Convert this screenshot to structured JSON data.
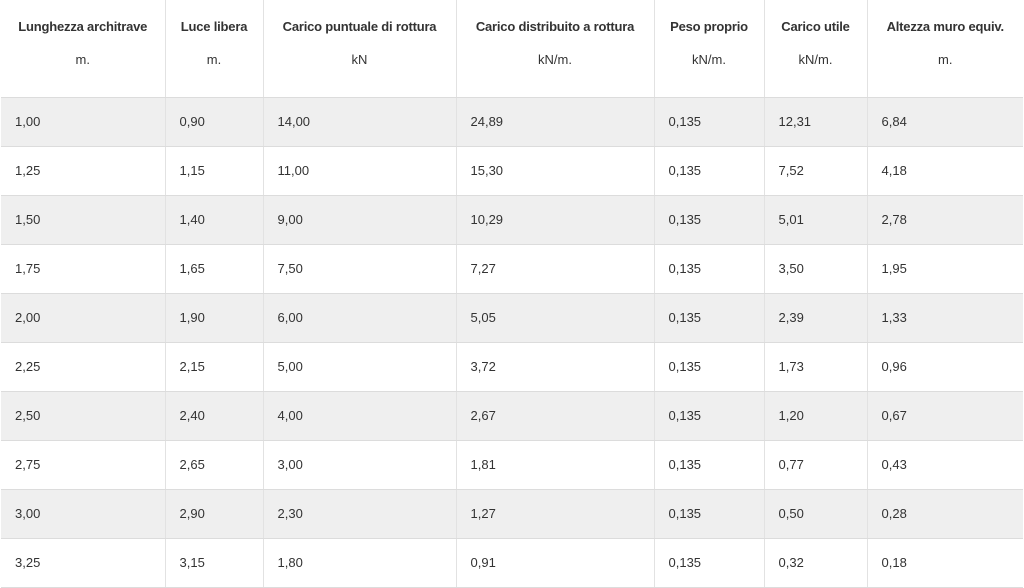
{
  "table": {
    "headers": [
      {
        "label": "Lunghezza architrave",
        "unit": "m."
      },
      {
        "label": "Luce libera",
        "unit": "m."
      },
      {
        "label": "Carico puntuale di rottura",
        "unit": "kN"
      },
      {
        "label": "Carico distribuito a rottura",
        "unit": "kN/m."
      },
      {
        "label": "Peso proprio",
        "unit": "kN/m."
      },
      {
        "label": "Carico utile",
        "unit": "kN/m."
      },
      {
        "label": "Altezza muro equiv.",
        "unit": "m."
      }
    ],
    "rows": [
      [
        "1,00",
        "0,90",
        "14,00",
        "24,89",
        "0,135",
        "12,31",
        "6,84"
      ],
      [
        "1,25",
        "1,15",
        "11,00",
        "15,30",
        "0,135",
        "7,52",
        "4,18"
      ],
      [
        "1,50",
        "1,40",
        "9,00",
        "10,29",
        "0,135",
        "5,01",
        "2,78"
      ],
      [
        "1,75",
        "1,65",
        "7,50",
        "7,27",
        "0,135",
        "3,50",
        "1,95"
      ],
      [
        "2,00",
        "1,90",
        "6,00",
        "5,05",
        "0,135",
        "2,39",
        "1,33"
      ],
      [
        "2,25",
        "2,15",
        "5,00",
        "3,72",
        "0,135",
        "1,73",
        "0,96"
      ],
      [
        "2,50",
        "2,40",
        "4,00",
        "2,67",
        "0,135",
        "1,20",
        "0,67"
      ],
      [
        "2,75",
        "2,65",
        "3,00",
        "1,81",
        "0,135",
        "0,77",
        "0,43"
      ],
      [
        "3,00",
        "2,90",
        "2,30",
        "1,27",
        "0,135",
        "0,50",
        "0,28"
      ],
      [
        "3,25",
        "3,15",
        "1,80",
        "0,91",
        "0,135",
        "0,32",
        "0,18"
      ]
    ]
  }
}
